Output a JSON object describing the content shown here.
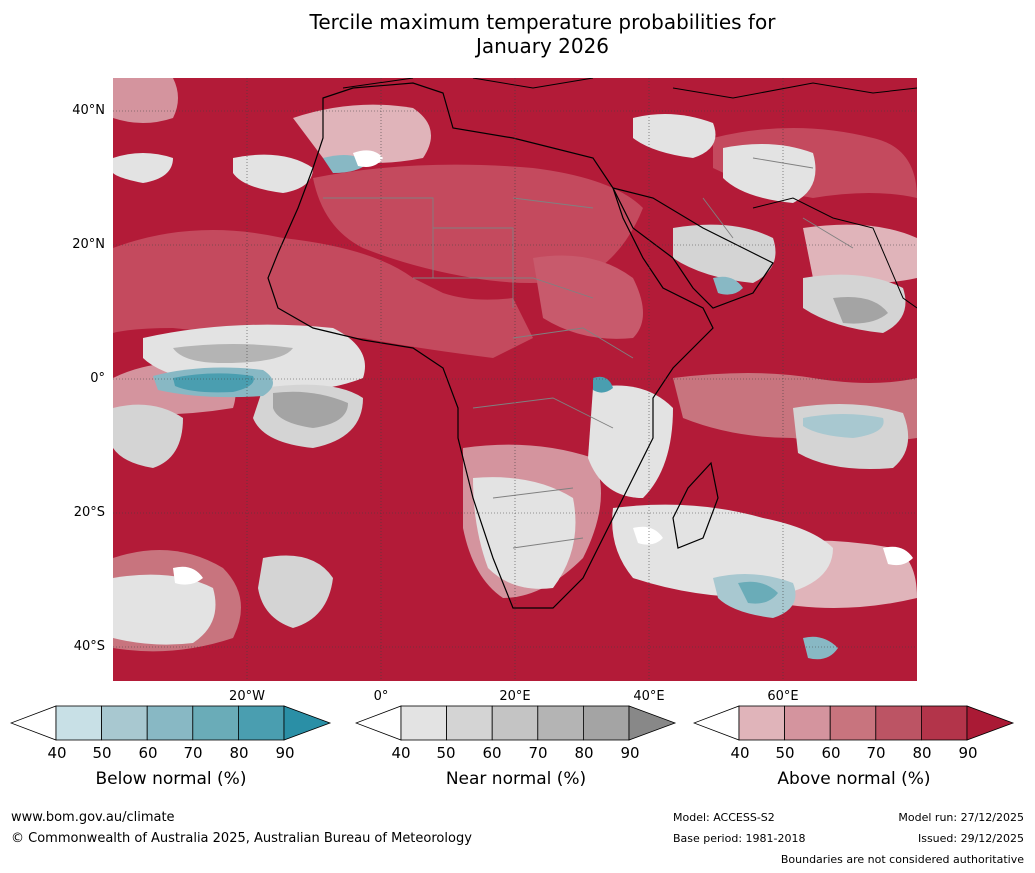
{
  "title_line1": "Tercile maximum temperature probabilities for",
  "title_line2": "January 2026",
  "map": {
    "lat_labels": [
      "40°N",
      "20°N",
      "0°",
      "20°S",
      "40°S"
    ],
    "lon_labels": [
      "20°W",
      "0°",
      "20°E",
      "40°E",
      "60°E"
    ]
  },
  "colorbars": [
    {
      "title": "Below normal (%)",
      "ticks": [
        "40",
        "50",
        "60",
        "70",
        "80",
        "90"
      ],
      "colors": [
        "#ffffff",
        "#c8e0e6",
        "#a8c8d0",
        "#88b8c4",
        "#6aacb8",
        "#4a9eb0",
        "#2a8fa6"
      ]
    },
    {
      "title": "Near normal (%)",
      "ticks": [
        "40",
        "50",
        "60",
        "70",
        "80",
        "90"
      ],
      "colors": [
        "#ffffff",
        "#e3e3e3",
        "#d4d4d4",
        "#c4c4c4",
        "#b4b4b4",
        "#a4a4a4",
        "#888888"
      ]
    },
    {
      "title": "Above normal (%)",
      "ticks": [
        "40",
        "50",
        "60",
        "70",
        "80",
        "90"
      ],
      "colors": [
        "#ffffff",
        "#e0b4ba",
        "#d4949e",
        "#c8747e",
        "#bc5464",
        "#b3344a",
        "#aa1a35"
      ]
    }
  ],
  "footer": {
    "website": "www.bom.gov.au/climate",
    "copyright": "© Commonwealth of Australia 2025, Australian Bureau of Meteorology",
    "model": "Model: ACCESS-S2",
    "base_period": "Base period: 1981-2018",
    "model_run": "Model run: 27/12/2025",
    "issued": "Issued: 29/12/2025",
    "disclaimer": "Boundaries are not considered authoritative"
  }
}
